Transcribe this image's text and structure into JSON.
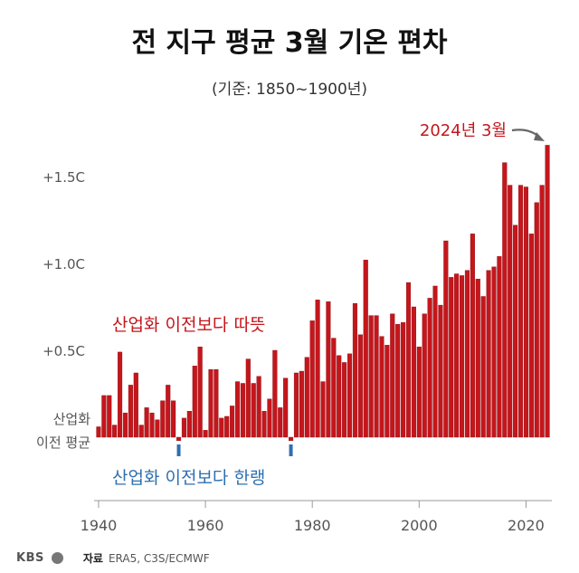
{
  "title": "전 지구 평균 3월 기온 편차",
  "subtitle": "(기준: 1850~1900년)",
  "colors": {
    "bar": "#c4161c",
    "bar_edge": "#8e0f12",
    "cold_marker": "#2f6fb0",
    "warm_text": "#c4161c",
    "cold_text": "#2f6fb0",
    "axis_text": "#555555"
  },
  "annotations": {
    "latest": "2024년 3월",
    "warm": "산업화 이전보다 따뜻",
    "cold": "산업화 이전보다 한랭",
    "baseline_line1": "산업화",
    "baseline_line2": "이전 평균"
  },
  "footer": {
    "logo": "KBS",
    "source_label": "자료",
    "source": "ERA5, C3S/ECMWF"
  },
  "chart_data": {
    "type": "bar",
    "x": [
      1940,
      1941,
      1942,
      1943,
      1944,
      1945,
      1946,
      1947,
      1948,
      1949,
      1950,
      1951,
      1952,
      1953,
      1954,
      1955,
      1956,
      1957,
      1958,
      1959,
      1960,
      1961,
      1962,
      1963,
      1964,
      1965,
      1966,
      1967,
      1968,
      1969,
      1970,
      1971,
      1972,
      1973,
      1974,
      1975,
      1976,
      1977,
      1978,
      1979,
      1980,
      1981,
      1982,
      1983,
      1984,
      1985,
      1986,
      1987,
      1988,
      1989,
      1990,
      1991,
      1992,
      1993,
      1994,
      1995,
      1996,
      1997,
      1998,
      1999,
      2000,
      2001,
      2002,
      2003,
      2004,
      2005,
      2006,
      2007,
      2008,
      2009,
      2010,
      2011,
      2012,
      2013,
      2014,
      2015,
      2016,
      2017,
      2018,
      2019,
      2020,
      2021,
      2022,
      2023,
      2024
    ],
    "values": [
      0.06,
      0.24,
      0.24,
      0.07,
      0.49,
      0.14,
      0.3,
      0.37,
      0.07,
      0.17,
      0.14,
      0.1,
      0.21,
      0.3,
      0.21,
      -0.02,
      0.11,
      0.15,
      0.41,
      0.52,
      0.04,
      0.39,
      0.39,
      0.11,
      0.12,
      0.18,
      0.32,
      0.31,
      0.45,
      0.31,
      0.35,
      0.15,
      0.22,
      0.5,
      0.17,
      0.34,
      -0.02,
      0.37,
      0.38,
      0.46,
      0.67,
      0.79,
      0.32,
      0.78,
      0.57,
      0.47,
      0.43,
      0.48,
      0.77,
      0.59,
      1.02,
      0.7,
      0.7,
      0.58,
      0.53,
      0.71,
      0.65,
      0.66,
      0.89,
      0.75,
      0.52,
      0.71,
      0.8,
      0.87,
      0.76,
      1.13,
      0.92,
      0.94,
      0.93,
      0.96,
      1.17,
      0.91,
      0.81,
      0.96,
      0.98,
      1.04,
      1.58,
      1.45,
      1.22,
      1.45,
      1.44,
      1.17,
      1.35,
      1.45,
      1.68
    ],
    "baseline": 0,
    "ylim": [
      -0.1,
      1.8
    ],
    "yticks": [
      {
        "value": 0.5,
        "label": "+0.5C"
      },
      {
        "value": 1.0,
        "label": "+1.0C"
      },
      {
        "value": 1.5,
        "label": "+1.5C"
      }
    ],
    "xticks": [
      1940,
      1960,
      1980,
      2000,
      2020
    ],
    "cold_years": [
      1955,
      1976
    ],
    "grid": false,
    "legend": "none"
  }
}
